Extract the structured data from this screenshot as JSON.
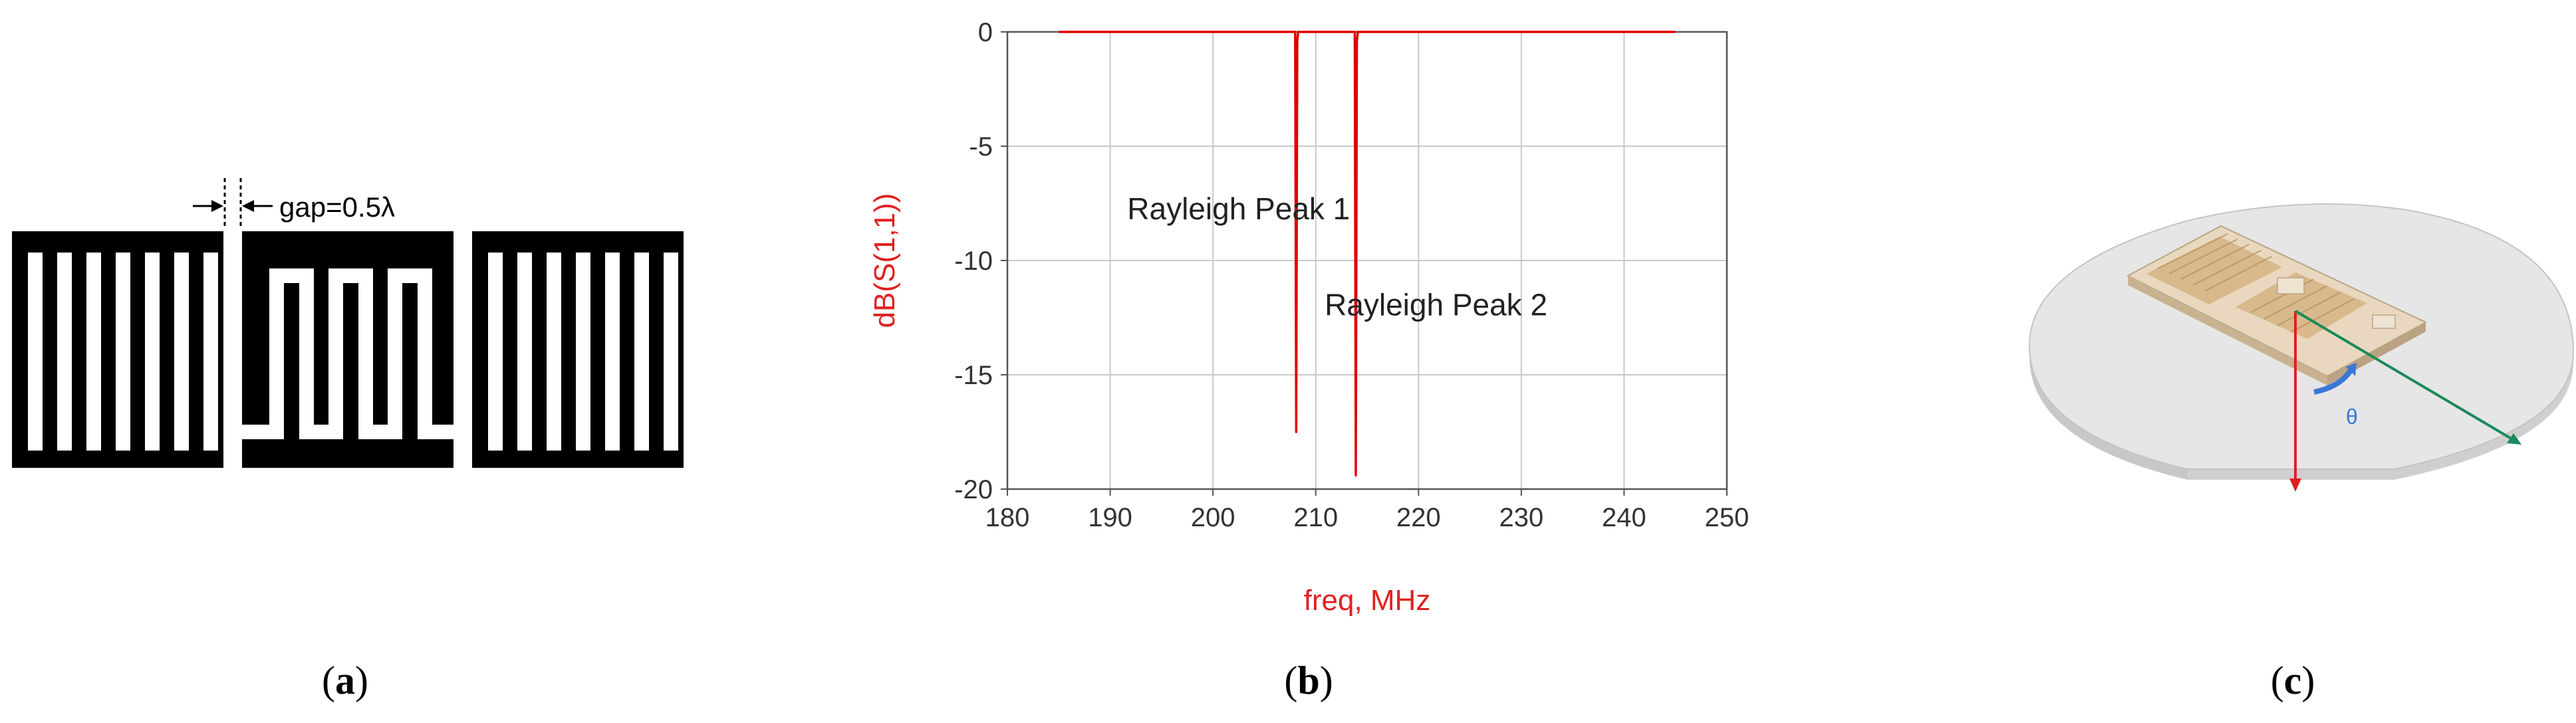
{
  "panel_a": {
    "gap_label": "gap=0.5λ"
  },
  "panel_b": {
    "chart_data": {
      "type": "line",
      "xlabel": "freq, MHz",
      "ylabel": "dB(S(1,1))",
      "xlim": [
        180,
        250
      ],
      "ylim": [
        -20,
        0
      ],
      "x_ticks": [
        180,
        190,
        200,
        210,
        220,
        230,
        240,
        250
      ],
      "y_ticks": [
        0,
        -5,
        -10,
        -15,
        -20
      ],
      "grid": true,
      "series": [
        {
          "color": "#e00000",
          "x": [
            185,
            208.0,
            208.1,
            208.2,
            208.3,
            208.4,
            213.8,
            213.9,
            214.0,
            214.1,
            214.2,
            245
          ],
          "y": [
            0,
            0,
            -17.5,
            -0.4,
            0,
            0,
            0,
            -19.4,
            -0.4,
            0,
            0,
            0
          ]
        }
      ],
      "annotations": [
        {
          "text": "Rayleigh Peak 1",
          "x": 202.5,
          "y": -8.2
        },
        {
          "text": "Rayleigh Peak 2",
          "x": 221.7,
          "y": -12.4
        }
      ]
    }
  },
  "panel_c": {
    "theta_label": "θ"
  },
  "captions": {
    "a": {
      "open": "(",
      "letter": "a",
      "close": ")"
    },
    "b": {
      "open": "(",
      "letter": "b",
      "close": ")"
    },
    "c": {
      "open": "(",
      "letter": "c",
      "close": ")"
    }
  },
  "colors": {
    "curve": "#e00000",
    "axis_label": "#e02020",
    "grid": "#c8c8c8",
    "tick_text": "#333333"
  }
}
